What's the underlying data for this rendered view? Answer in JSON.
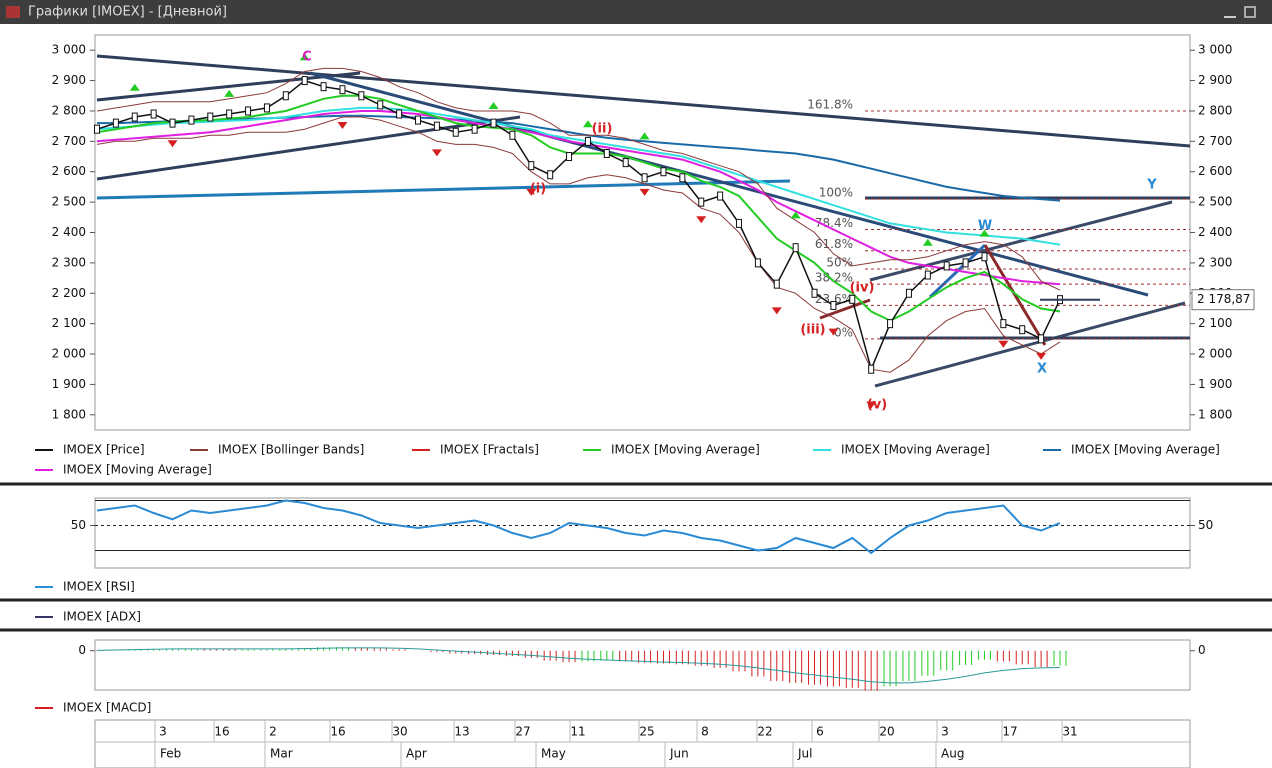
{
  "window": {
    "title": "Графики [IMOEX] - [Дневной]"
  },
  "chart_data": [
    {
      "type": "line",
      "ylim": [
        1750,
        3050
      ],
      "yticks": [
        {
          "value": 1800,
          "label": "1 800"
        },
        {
          "value": 1900,
          "label": "1 900"
        },
        {
          "value": 2000,
          "label": "2 000"
        },
        {
          "value": 2100,
          "label": "2 100"
        },
        {
          "value": 2200,
          "label": "2 200"
        },
        {
          "value": 2300,
          "label": "2 300"
        },
        {
          "value": 2400,
          "label": "2 400"
        },
        {
          "value": 2500,
          "label": "2 500"
        },
        {
          "value": 2600,
          "label": "2 600"
        },
        {
          "value": 2700,
          "label": "2 700"
        },
        {
          "value": 2800,
          "label": "2 800"
        },
        {
          "value": 2900,
          "label": "2 900"
        },
        {
          "value": 3000,
          "label": "3 000"
        }
      ],
      "last_price": {
        "value": 2178.87,
        "label": "2 178,87"
      },
      "fib_levels": [
        {
          "value": 2800,
          "label": "161.8%"
        },
        {
          "value": 2510,
          "label": "100%"
        },
        {
          "value": 2410,
          "label": "78.4%"
        },
        {
          "value": 2340,
          "label": "61.8%"
        },
        {
          "value": 2280,
          "label": "50%"
        },
        {
          "value": 2230,
          "label": "38.2%"
        },
        {
          "value": 2160,
          "label": "23.6%"
        },
        {
          "value": 2050,
          "label": "0%"
        }
      ],
      "annotations": [
        {
          "text": "C",
          "color": "#d020c0"
        },
        {
          "text": "(i)",
          "color": "#d42020"
        },
        {
          "text": "(ii)",
          "color": "#d42020"
        },
        {
          "text": "(iii)",
          "color": "#d42020"
        },
        {
          "text": "(iv)",
          "color": "#d42020"
        },
        {
          "text": "(v)",
          "color": "#d42020"
        },
        {
          "text": "W",
          "color": "#2a8ad4"
        },
        {
          "text": "X",
          "color": "#2a8ad4"
        },
        {
          "text": "Y",
          "color": "#2a8ad4"
        }
      ],
      "series": [
        {
          "name": "IMOEX [Price]",
          "color": "#111111",
          "values": [
            2740,
            2760,
            2780,
            2790,
            2760,
            2770,
            2780,
            2790,
            2800,
            2810,
            2850,
            2900,
            2880,
            2870,
            2850,
            2820,
            2790,
            2770,
            2750,
            2730,
            2740,
            2760,
            2720,
            2620,
            2590,
            2650,
            2700,
            2660,
            2630,
            2580,
            2600,
            2580,
            2500,
            2520,
            2430,
            2300,
            2230,
            2350,
            2200,
            2160,
            2180,
            1950,
            2100,
            2200,
            2260,
            2290,
            2300,
            2320,
            2100,
            2080,
            2050,
            2179
          ]
        },
        {
          "name": "IMOEX [Bollinger Bands]",
          "color": "#8b3a3a",
          "values": [
            2800,
            2810,
            2820,
            2830,
            2830,
            2830,
            2830,
            2840,
            2850,
            2860,
            2890,
            2930,
            2940,
            2940,
            2930,
            2910,
            2880,
            2860,
            2830,
            2810,
            2800,
            2800,
            2800,
            2790,
            2760,
            2720,
            2720,
            2720,
            2710,
            2690,
            2670,
            2660,
            2640,
            2620,
            2600,
            2560,
            2480,
            2440,
            2400,
            2330,
            2290,
            2300,
            2310,
            2310,
            2320,
            2340,
            2360,
            2370,
            2360,
            2320,
            2240,
            2210
          ],
          "lower": [
            2690,
            2700,
            2700,
            2710,
            2710,
            2710,
            2720,
            2720,
            2730,
            2730,
            2730,
            2740,
            2760,
            2780,
            2780,
            2770,
            2750,
            2730,
            2700,
            2690,
            2690,
            2680,
            2660,
            2600,
            2560,
            2560,
            2580,
            2590,
            2580,
            2560,
            2540,
            2530,
            2480,
            2460,
            2400,
            2300,
            2220,
            2200,
            2150,
            2120,
            2080,
            1950,
            1940,
            1980,
            2060,
            2110,
            2140,
            2150,
            2060,
            2030,
            2000,
            2040
          ]
        },
        {
          "name": "IMOEX [Fractals]",
          "color": "#d42020",
          "up_color": "#22cc22",
          "values": [
            null,
            null,
            null,
            null,
            2730,
            null,
            null,
            null,
            null,
            null,
            null,
            null,
            null,
            2790,
            null,
            null,
            null,
            null,
            2700,
            null,
            null,
            null,
            null,
            2570,
            null,
            null,
            null,
            null,
            null,
            2570,
            null,
            null,
            2480,
            null,
            null,
            null,
            2180,
            null,
            null,
            2110,
            null,
            1870,
            null,
            null,
            null,
            null,
            null,
            null,
            2070,
            null,
            2030,
            null
          ],
          "up": [
            null,
            null,
            2840,
            null,
            null,
            null,
            null,
            2820,
            null,
            null,
            null,
            2940,
            null,
            null,
            null,
            null,
            null,
            null,
            null,
            null,
            null,
            2780,
            null,
            null,
            null,
            null,
            2720,
            null,
            null,
            2680,
            null,
            null,
            null,
            null,
            null,
            null,
            null,
            2420,
            null,
            null,
            null,
            null,
            null,
            null,
            2330,
            null,
            null,
            2360,
            null,
            null,
            null,
            null
          ]
        },
        {
          "name": "IMOEX [Moving Average]",
          "color": "#22cc22",
          "values": [
            2730,
            2740,
            2750,
            2760,
            2765,
            2768,
            2770,
            2775,
            2780,
            2790,
            2800,
            2820,
            2840,
            2850,
            2850,
            2840,
            2820,
            2800,
            2780,
            2760,
            2750,
            2745,
            2740,
            2720,
            2680,
            2660,
            2660,
            2660,
            2650,
            2630,
            2610,
            2600,
            2570,
            2550,
            2520,
            2450,
            2380,
            2340,
            2300,
            2240,
            2200,
            2140,
            2110,
            2140,
            2180,
            2220,
            2250,
            2270,
            2230,
            2180,
            2150,
            2140
          ]
        },
        {
          "name": "IMOEX [Moving Average]",
          "color": "#33e0e0",
          "values": [
            2740,
            2745,
            2750,
            2755,
            2760,
            2762,
            2765,
            2768,
            2770,
            2775,
            2780,
            2790,
            2800,
            2805,
            2810,
            2810,
            2805,
            2800,
            2790,
            2780,
            2770,
            2760,
            2750,
            2740,
            2720,
            2710,
            2700,
            2690,
            2680,
            2670,
            2660,
            2650,
            2630,
            2610,
            2590,
            2570,
            2550,
            2530,
            2510,
            2490,
            2470,
            2450,
            2430,
            2420,
            2410,
            2400,
            2395,
            2390,
            2385,
            2380,
            2370,
            2360
          ]
        },
        {
          "name": "IMOEX [Moving Average]",
          "color": "#1a6aa8",
          "values": [
            2760,
            2760,
            2762,
            2764,
            2766,
            2768,
            2770,
            2772,
            2774,
            2776,
            2778,
            2780,
            2782,
            2784,
            2784,
            2782,
            2780,
            2778,
            2776,
            2772,
            2768,
            2764,
            2760,
            2750,
            2740,
            2730,
            2720,
            2712,
            2705,
            2700,
            2695,
            2690,
            2685,
            2680,
            2676,
            2670,
            2665,
            2660,
            2650,
            2640,
            2625,
            2610,
            2595,
            2580,
            2565,
            2550,
            2540,
            2530,
            2520,
            2515,
            2510,
            2505
          ]
        },
        {
          "name": "IMOEX [Moving Average]",
          "color": "#e020e0",
          "values": [
            2700,
            2705,
            2710,
            2715,
            2720,
            2725,
            2730,
            2740,
            2750,
            2760,
            2770,
            2780,
            2790,
            2795,
            2800,
            2800,
            2795,
            2790,
            2780,
            2770,
            2760,
            2750,
            2740,
            2730,
            2715,
            2700,
            2690,
            2680,
            2670,
            2660,
            2650,
            2640,
            2620,
            2600,
            2570,
            2540,
            2500,
            2470,
            2440,
            2410,
            2380,
            2350,
            2320,
            2300,
            2290,
            2280,
            2270,
            2260,
            2250,
            2240,
            2235,
            2230
          ]
        }
      ]
    },
    {
      "type": "line",
      "ylim": [
        16,
        72
      ],
      "yticks": [
        50
      ],
      "levels": [
        30,
        50,
        70
      ],
      "series": [
        {
          "name": "IMOEX [RSI]",
          "color": "#2a8ad4",
          "values": [
            62,
            64,
            66,
            60,
            55,
            62,
            60,
            62,
            64,
            66,
            70,
            68,
            64,
            62,
            58,
            52,
            50,
            48,
            50,
            52,
            54,
            50,
            44,
            40,
            44,
            52,
            50,
            48,
            44,
            42,
            46,
            44,
            40,
            38,
            34,
            30,
            32,
            40,
            36,
            32,
            40,
            28,
            40,
            50,
            54,
            60,
            62,
            64,
            66,
            50,
            46,
            52
          ]
        }
      ]
    },
    {
      "type": "line",
      "series": [
        {
          "name": "IMOEX [ADX]",
          "color": "#333366"
        }
      ]
    },
    {
      "type": "bar",
      "ylim": [
        -110,
        30
      ],
      "yticks": [
        0
      ],
      "series": [
        {
          "name": "IMOEX [MACD]",
          "type": "bar",
          "color": "#d42020",
          "up_color": "#22cc22",
          "values": [
            2,
            3,
            4,
            5,
            6,
            6,
            5,
            4,
            4,
            5,
            6,
            8,
            10,
            10,
            9,
            7,
            4,
            0,
            -4,
            -8,
            -10,
            -12,
            -15,
            -20,
            -28,
            -32,
            -30,
            -28,
            -30,
            -34,
            -36,
            -38,
            -42,
            -48,
            -58,
            -72,
            -85,
            -90,
            -95,
            -100,
            -104,
            -112,
            -100,
            -85,
            -70,
            -55,
            -40,
            -25,
            -30,
            -38,
            -46,
            -42
          ]
        },
        {
          "type": "line",
          "color": "#2a9a9a",
          "values": [
            1,
            2,
            3,
            4,
            5,
            5,
            5,
            5,
            5,
            5,
            5,
            6,
            7,
            8,
            8,
            8,
            7,
            5,
            2,
            -1,
            -4,
            -7,
            -10,
            -13,
            -17,
            -21,
            -24,
            -26,
            -28,
            -30,
            -32,
            -33,
            -35,
            -38,
            -42,
            -48,
            -55,
            -62,
            -68,
            -74,
            -80,
            -87,
            -90,
            -90,
            -86,
            -80,
            -72,
            -62,
            -55,
            -50,
            -48,
            -47
          ]
        }
      ],
      "date_labels": [
        "3",
        "16",
        "2",
        "16",
        "30",
        "13",
        "27",
        "11",
        "25",
        "8",
        "22",
        "6",
        "20",
        "3",
        "17",
        "31"
      ],
      "month_labels": [
        "Feb",
        "Mar",
        "Apr",
        "May",
        "Jun",
        "Jul",
        "Aug"
      ]
    }
  ]
}
